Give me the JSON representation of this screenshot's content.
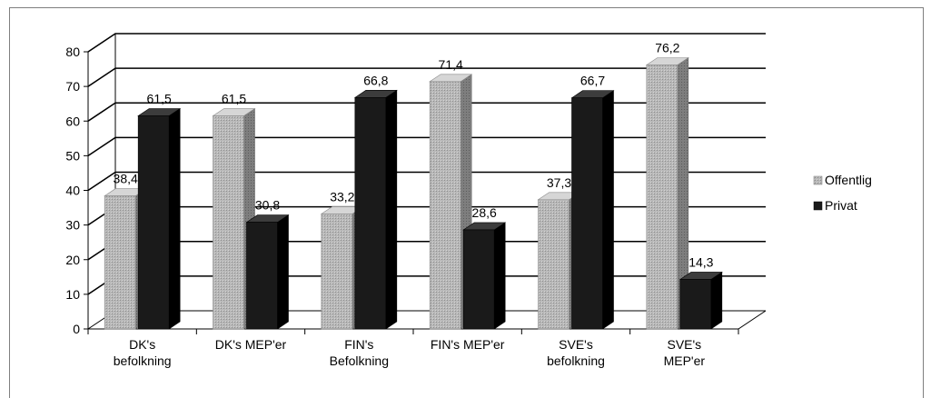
{
  "chart_data": {
    "type": "bar",
    "categories": [
      [
        "DK's",
        "befolkning"
      ],
      [
        "DK's MEP'er"
      ],
      [
        "FIN's",
        "Befolkning"
      ],
      [
        "FIN's MEP'er"
      ],
      [
        "SVE's",
        "befolkning"
      ],
      [
        "SVE's",
        "MEP'er"
      ]
    ],
    "series": [
      {
        "name": "Offentlig",
        "values": [
          38.4,
          61.5,
          33.2,
          71.4,
          37.3,
          76.2
        ],
        "labels": [
          "38,4",
          "61,5",
          "33,2",
          "71,4",
          "37,3",
          "76,2"
        ]
      },
      {
        "name": "Privat",
        "values": [
          61.5,
          30.8,
          66.8,
          28.6,
          66.7,
          14.3
        ],
        "labels": [
          "61,5",
          "30,8",
          "66,8",
          "28,6",
          "66,7",
          "14,3"
        ]
      }
    ],
    "ylim": [
      0,
      80
    ],
    "yticks": [
      "0",
      "10",
      "20",
      "30",
      "40",
      "50",
      "60",
      "70",
      "80"
    ],
    "grid": true,
    "legend_position": "right",
    "colors": {
      "offentlig_front": "#b4b4b4",
      "offentlig_side": "#7c7c7c",
      "offentlig_top": "#d6d6d6",
      "privat_front": "#1a1a1a",
      "privat_side": "#000000",
      "privat_top": "#3c3c3c",
      "grid": "#000000"
    }
  }
}
